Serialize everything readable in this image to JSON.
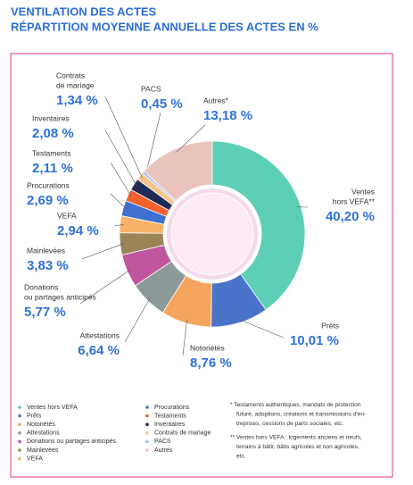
{
  "chart_data": {
    "type": "donut",
    "title": "VENTILATION DES ACTES",
    "subtitle": "RÉPARTITION MOYENNE ANNUELLE DES ACTES EN %",
    "categories": [
      "Ventes hors VEFA",
      "Prêts",
      "Notoriétés",
      "Attestations",
      "Donations ou partages anticipés",
      "Mainlevées",
      "VEFA",
      "Procurations",
      "Testaments",
      "Inventaires",
      "Contrats de mariage",
      "PACS",
      "Autres"
    ],
    "callout_labels": [
      [
        "Ventes",
        "hors VEFA**"
      ],
      [
        "Prêts"
      ],
      [
        "Notoriétés"
      ],
      [
        "Attestations"
      ],
      [
        "Donations",
        "ou partages anticipés"
      ],
      [
        "Mainlevées"
      ],
      [
        "VEFA"
      ],
      [
        "Procurations"
      ],
      [
        "Testaments"
      ],
      [
        "Inventaires"
      ],
      [
        "Contrats",
        "de mariage"
      ],
      [
        "PACS"
      ],
      [
        "Autres*"
      ]
    ],
    "values": [
      40.2,
      10.01,
      8.76,
      6.64,
      5.77,
      3.83,
      2.94,
      2.69,
      2.11,
      2.08,
      1.34,
      0.45,
      13.18
    ],
    "value_labels": [
      "40,20 %",
      "10,01 %",
      "8,76 %",
      "6,64 %",
      "5,77 %",
      "3,83 %",
      "2,94 %",
      "2,69 %",
      "2,11 %",
      "2,08 %",
      "1,34 %",
      "0,45 %",
      "13,18 %"
    ],
    "colors": [
      "#5ecfb7",
      "#4a74c9",
      "#f5a55e",
      "#8c9a9a",
      "#c0569e",
      "#9b8556",
      "#f7b26a",
      "#3f6fd0",
      "#f2622a",
      "#1f2a55",
      "#f6c58e",
      "#a9c1ec",
      "#ebc3bd"
    ],
    "footnotes": [
      [
        "* Testaments authentiques, mandats de protection",
        "future, adoptions, créations et transmissions d'en-",
        "treprises, cessions de parts sociales, etc."
      ],
      [
        "** Ventes hors VEFA : logements anciens et neufs,",
        "terrains à bâtir, bâtis agricoles et non agricoles,",
        "etc."
      ]
    ]
  }
}
